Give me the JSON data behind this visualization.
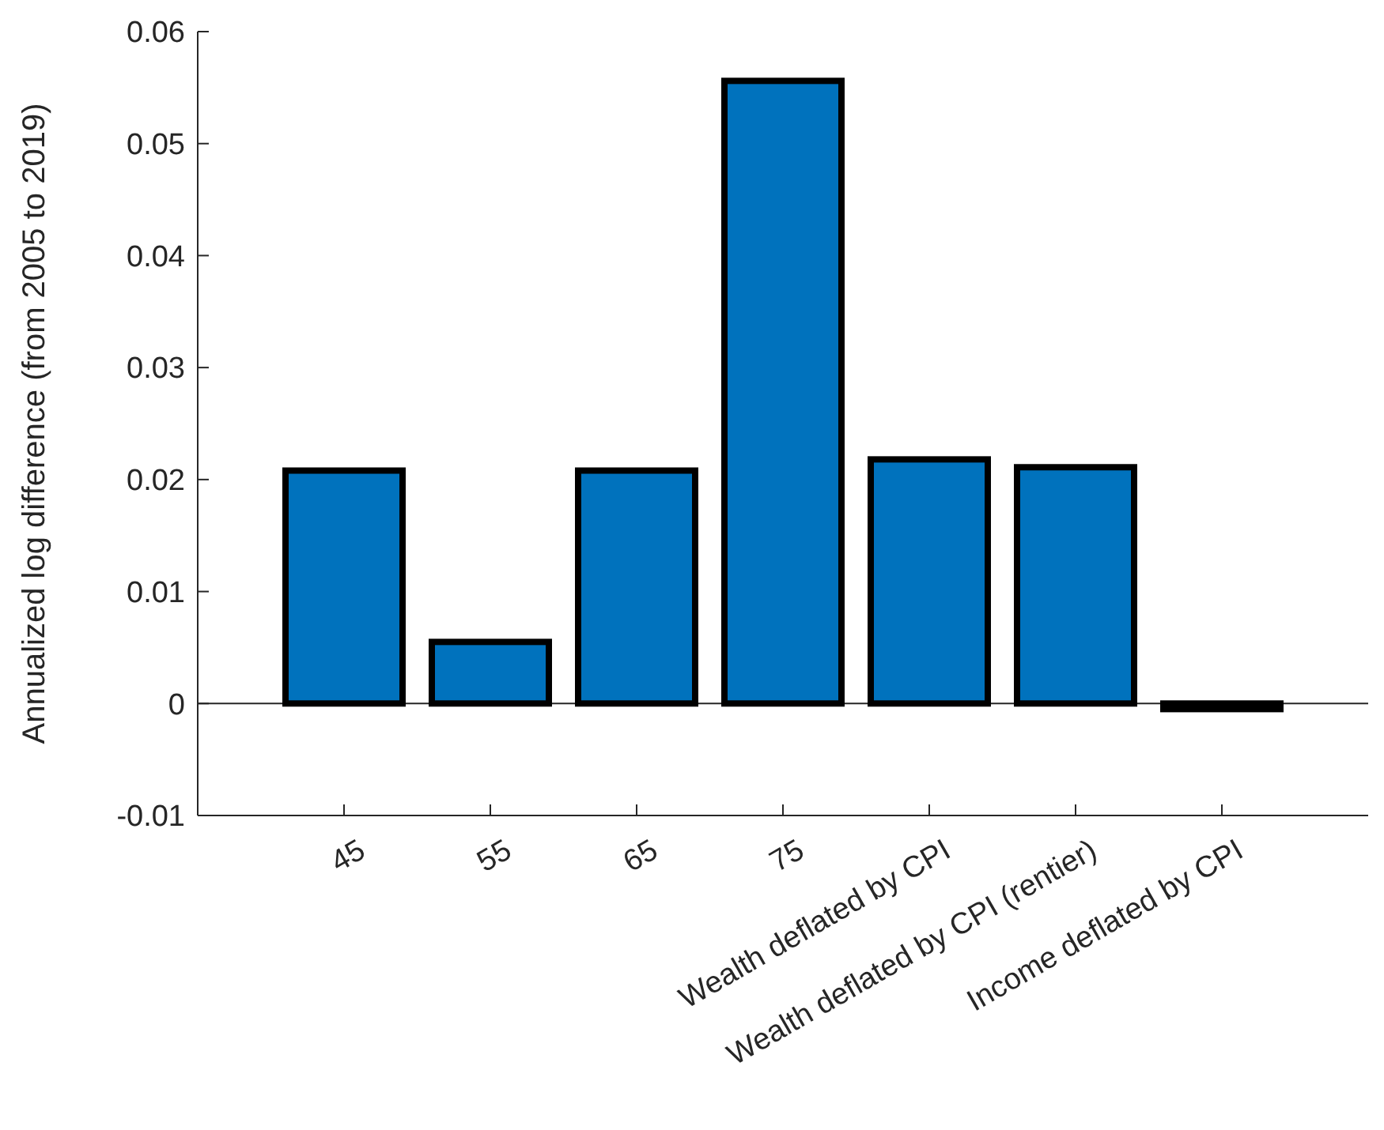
{
  "chart_data": {
    "type": "bar",
    "ylabel": "Annualized log difference (from 2005 to 2019)",
    "categories": [
      "45",
      "55",
      "65",
      "75",
      "Wealth deflated by CPI",
      "Wealth deflated by CPI (rentier)",
      "Income deflated by CPI"
    ],
    "values": [
      0.0208,
      0.0055,
      0.0208,
      0.0556,
      0.0218,
      0.0211,
      -0.0005
    ],
    "color": "#0072bd",
    "ylim": [
      -0.01,
      0.06
    ],
    "yticks": [
      -0.01,
      0,
      0.01,
      0.02,
      0.03,
      0.04,
      0.05,
      0.06
    ],
    "ref_lines": [
      {
        "axis": "y",
        "value": 0,
        "color": "#262626"
      }
    ]
  }
}
